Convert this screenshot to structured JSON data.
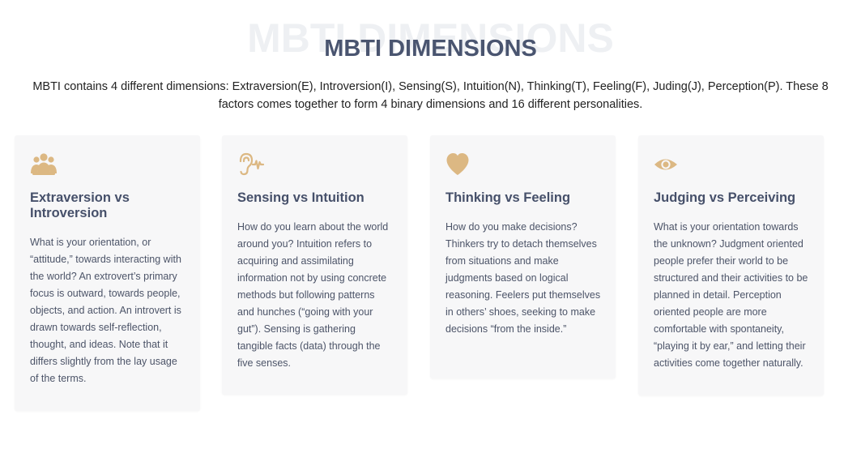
{
  "section": {
    "title_bg": "MBTI DIMENSIONS",
    "title": "MBTI DIMENSIONS",
    "intro": "MBTI contains 4 different dimensions: Extraversion(E), Introversion(I), Sensing(S), Intuition(N), Thinking(T), Feeling(F), Juding(J), Perception(P). These 8 factors comes together to form 4 binary dimensions and 16 different personalities."
  },
  "colors": {
    "accent_icon": "#dcb883",
    "heading": "#46506a",
    "body_text": "#4c5468",
    "card_bg": "#f7f7f8"
  },
  "cards": [
    {
      "icon": "users-group-icon",
      "title": "Extraversion vs Introversion",
      "body": "What is your orientation, or “attitude,” towards interacting with the world? An extrovert’s primary focus is outward, towards people, objects, and action. An introvert is drawn towards self-reflection, thought, and ideas. Note that it differs slightly from the lay usage of the terms."
    },
    {
      "icon": "ear-sound-icon",
      "title": "Sensing vs Intuition",
      "body": "How do you learn about the world around you? Intuition refers to acquiring and assimilating information not by using concrete methods but following patterns and hunches (“going with your gut”). Sensing is gathering tangible facts (data) through the five senses."
    },
    {
      "icon": "heart-icon",
      "title": "Thinking vs Feeling",
      "body": "How do you make decisions? Thinkers try to detach themselves from situations and make judgments based on logical reasoning. Feelers put themselves in others’ shoes, seeking to make decisions “from the inside.”"
    },
    {
      "icon": "eye-icon",
      "title": "Judging vs Perceiving",
      "body": "What is your orientation towards the unknown? Judgment oriented people prefer their world to be structured and their activities to be planned in detail. Perception oriented people are more comfortable with spontaneity, “playing it by ear,” and letting their activities come together naturally."
    }
  ]
}
